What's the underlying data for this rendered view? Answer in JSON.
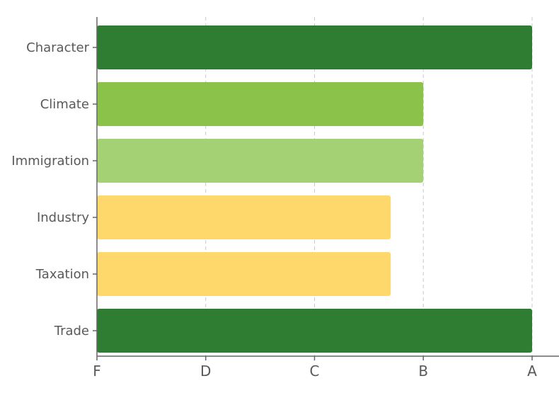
{
  "chart_data": {
    "type": "bar",
    "orientation": "horizontal",
    "categories": [
      "Character",
      "Climate",
      "Immigration",
      "Industry",
      "Taxation",
      "Trade"
    ],
    "x_ticks": [
      "F",
      "D",
      "C",
      "B",
      "A"
    ],
    "values": [
      4.0,
      3.0,
      3.0,
      2.7,
      2.7,
      4.0
    ],
    "bar_colors": [
      "#2e7d32",
      "#8bc34a",
      "#a3d173",
      "#ffd86b",
      "#ffd86b",
      "#2e7d32"
    ],
    "xlim": [
      0,
      4.2
    ],
    "grid": "vertical dashed",
    "title": "",
    "xlabel": "",
    "ylabel": ""
  }
}
